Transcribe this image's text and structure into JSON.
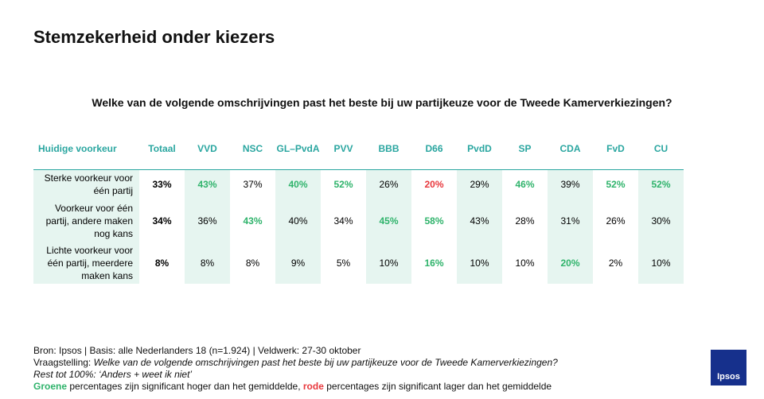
{
  "title": "Stemzekerheid onder kiezers",
  "question": "Welke van de volgende omschrijvingen past het beste bij uw partijkeuze voor de Tweede Kamerverkiezingen?",
  "table": {
    "header": [
      "Huidige voorkeur",
      "Totaal",
      "VVD",
      "NSC",
      "GL–PvdA",
      "PVV",
      "BBB",
      "D66",
      "PvdD",
      "SP",
      "CDA",
      "FvD",
      "CU"
    ],
    "rows": [
      {
        "label": "Sterke voorkeur voor één partij",
        "values": [
          "33%",
          "43%",
          "37%",
          "40%",
          "52%",
          "26%",
          "20%",
          "29%",
          "46%",
          "39%",
          "52%",
          "52%"
        ],
        "colors": [
          "#000000",
          "#2fb36b",
          "#000000",
          "#2fb36b",
          "#2fb36b",
          "#000000",
          "#e8383d",
          "#000000",
          "#2fb36b",
          "#000000",
          "#2fb36b",
          "#2fb36b"
        ]
      },
      {
        "label": "Voorkeur voor één partij, andere maken nog kans",
        "values": [
          "34%",
          "36%",
          "43%",
          "40%",
          "34%",
          "45%",
          "58%",
          "43%",
          "28%",
          "31%",
          "26%",
          "30%"
        ],
        "colors": [
          "#000000",
          "#000000",
          "#2fb36b",
          "#000000",
          "#000000",
          "#2fb36b",
          "#2fb36b",
          "#000000",
          "#000000",
          "#000000",
          "#000000",
          "#000000"
        ]
      },
      {
        "label": "Lichte voorkeur voor één partij, meerdere maken kans",
        "values": [
          "8%",
          "8%",
          "8%",
          "9%",
          "5%",
          "10%",
          "16%",
          "10%",
          "10%",
          "20%",
          "2%",
          "10%"
        ],
        "colors": [
          "#000000",
          "#000000",
          "#000000",
          "#000000",
          "#000000",
          "#000000",
          "#2fb36b",
          "#000000",
          "#000000",
          "#2fb36b",
          "#000000",
          "#000000"
        ]
      }
    ]
  },
  "footer": {
    "source": "Bron: Ipsos | Basis: alle Nederlanders 18 (n=1.924) | Veldwerk: 27-30 oktober",
    "question_label": "Vraagstelling: ",
    "question_text": "Welke van de volgende omschrijvingen past het beste bij uw partijkeuze voor de Tweede Kamerverkiezingen?",
    "rest": "Rest tot 100%: ‘Anders + weet ik niet’",
    "legend_green": "Groene",
    "legend_middle": " percentages zijn significant hoger dan het gemiddelde, ",
    "legend_red": "rode",
    "legend_end": " percentages zijn significant lager dan het gemiddelde"
  },
  "logo": "Ipsos"
}
